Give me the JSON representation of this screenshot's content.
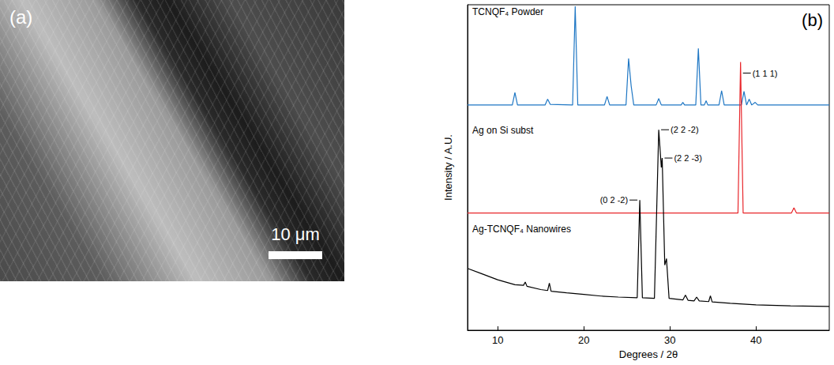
{
  "image_panel": {
    "letter": "(a)",
    "scale_bar": "10 μm"
  },
  "chart_data": {
    "type": "line",
    "panel_label": "(b)",
    "x_label": "Degrees / 2θ",
    "y_label": "Intensity / A.U.",
    "xlim": [
      6.5,
      48.5
    ],
    "xticks": [
      10,
      20,
      30,
      40
    ],
    "ylim": [
      0,
      100
    ],
    "tick_labels": "x",
    "grid": false,
    "series": [
      {
        "name": "TCNQF₄ Powder",
        "color": "#1f77c4",
        "x": [
          6.5,
          11.7,
          12.0,
          12.3,
          15.5,
          15.8,
          16.1,
          18.7,
          19.0,
          19.3,
          22.4,
          22.7,
          23.0,
          24.9,
          25.2,
          25.5,
          25.8,
          28.4,
          28.7,
          29.0,
          31.3,
          31.5,
          31.7,
          33.0,
          33.3,
          33.6,
          34.0,
          34.2,
          34.4,
          35.7,
          36.0,
          36.3,
          38.3,
          38.6,
          38.9,
          39.2,
          39.5,
          39.9,
          40.2,
          48.5
        ],
        "values": [
          69.2,
          69.2,
          73,
          69.2,
          69.2,
          71,
          69.4,
          69.2,
          99.5,
          69.2,
          69.2,
          71.8,
          69.2,
          69.2,
          83.5,
          75,
          69.2,
          69.2,
          71.2,
          69.2,
          69.2,
          70,
          69.2,
          69.2,
          86.6,
          69.2,
          69.2,
          70.5,
          69.2,
          69.2,
          73.6,
          69.2,
          69.2,
          73.4,
          69.2,
          71,
          69.2,
          70,
          69.2,
          69.2
        ]
      },
      {
        "name": "Ag on Si subst",
        "color": "#e8262b",
        "x": [
          6.5,
          37.9,
          38.2,
          38.5,
          44.1,
          44.4,
          44.7,
          48.5
        ],
        "values": [
          36,
          36,
          82.4,
          36,
          36,
          37.6,
          36,
          36
        ]
      },
      {
        "name": "Ag-TCNQF₄ Nanowires",
        "color": "#000000",
        "x": [
          6.5,
          8,
          10,
          12,
          13,
          13.2,
          13.4,
          15,
          15.8,
          16,
          16.2,
          18,
          20,
          22,
          24,
          26.2,
          26.5,
          26.8,
          28.2,
          28.7,
          29.0,
          29.1,
          29.4,
          29.6,
          29.9,
          31.5,
          31.8,
          32.1,
          32.8,
          33.1,
          33.4,
          34.5,
          34.7,
          34.9,
          37,
          40,
          44,
          48.5
        ],
        "values": [
          19,
          17.5,
          15.5,
          14,
          13.8,
          14.8,
          13.5,
          12.5,
          12.2,
          14.5,
          12,
          11.5,
          11,
          10.5,
          10.2,
          10,
          40,
          10,
          9.8,
          61.6,
          50,
          52.9,
          20,
          22,
          9.8,
          9.3,
          10.8,
          9.2,
          9,
          10.2,
          9,
          8.8,
          10.6,
          8.7,
          8.3,
          7.8,
          7.5,
          7.3
        ]
      }
    ],
    "annotations": [
      {
        "text": "(0 2 -2)",
        "x": 26.5,
        "y": 40
      },
      {
        "text": "(2 2 -2)",
        "x": 28.7,
        "y": 61.6
      },
      {
        "text": "(2 2 -3)",
        "x": 29.1,
        "y": 52.9
      },
      {
        "text": "(1 1 1)",
        "x": 38.2,
        "y": 82.4
      }
    ]
  }
}
